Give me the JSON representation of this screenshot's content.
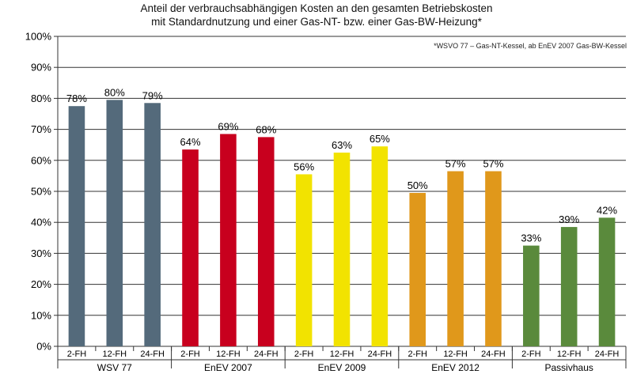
{
  "chart_data": {
    "type": "bar",
    "title": "Anteil der verbrauchsabhängigen Kosten an den gesamten Betriebskosten mit Standardnutzung und einer Gas-NT- bzw. einer Gas-BW-Heizung*",
    "title_lines": [
      "Anteil der verbrauchsabhängigen Kosten an den gesamten Betriebskosten",
      "mit Standardnutzung und einer Gas-NT- bzw. einer Gas-BW-Heizung*"
    ],
    "footnote": "*WSVO 77 – Gas-NT-Kessel, ab  EnEV 2007 Gas-BW-Kessel",
    "ylim": [
      0,
      100
    ],
    "y_ticks": [
      "0%",
      "10%",
      "20%",
      "30%",
      "40%",
      "50%",
      "60%",
      "70%",
      "80%",
      "90%",
      "100%"
    ],
    "grid": true,
    "groups": [
      {
        "name": "WSV 77",
        "color": "#546a7b",
        "bars": [
          {
            "category": "2-FH",
            "value": 77.5,
            "label": "78%"
          },
          {
            "category": "12-FH",
            "value": 79.5,
            "label": "80%"
          },
          {
            "category": "24-FH",
            "value": 78.5,
            "label": "79%"
          }
        ]
      },
      {
        "name": "EnEV 2007",
        "color": "#c8001e",
        "bars": [
          {
            "category": "2-FH",
            "value": 63.5,
            "label": "64%"
          },
          {
            "category": "12-FH",
            "value": 68.5,
            "label": "69%"
          },
          {
            "category": "24-FH",
            "value": 67.5,
            "label": "68%"
          }
        ]
      },
      {
        "name": "EnEV 2009",
        "color": "#f2e300",
        "bars": [
          {
            "category": "2-FH",
            "value": 55.5,
            "label": "56%"
          },
          {
            "category": "12-FH",
            "value": 62.5,
            "label": "63%"
          },
          {
            "category": "24-FH",
            "value": 64.5,
            "label": "65%"
          }
        ]
      },
      {
        "name": "EnEV 2012",
        "color": "#e0981b",
        "bars": [
          {
            "category": "2-FH",
            "value": 49.5,
            "label": "50%"
          },
          {
            "category": "12-FH",
            "value": 56.5,
            "label": "57%"
          },
          {
            "category": "24-FH",
            "value": 56.5,
            "label": "57%"
          }
        ]
      },
      {
        "name": "Passivhaus",
        "color": "#5a8a3c",
        "bars": [
          {
            "category": "2-FH",
            "value": 32.5,
            "label": "33%"
          },
          {
            "category": "12-FH",
            "value": 38.5,
            "label": "39%"
          },
          {
            "category": "24-FH",
            "value": 41.5,
            "label": "42%"
          }
        ]
      }
    ]
  }
}
